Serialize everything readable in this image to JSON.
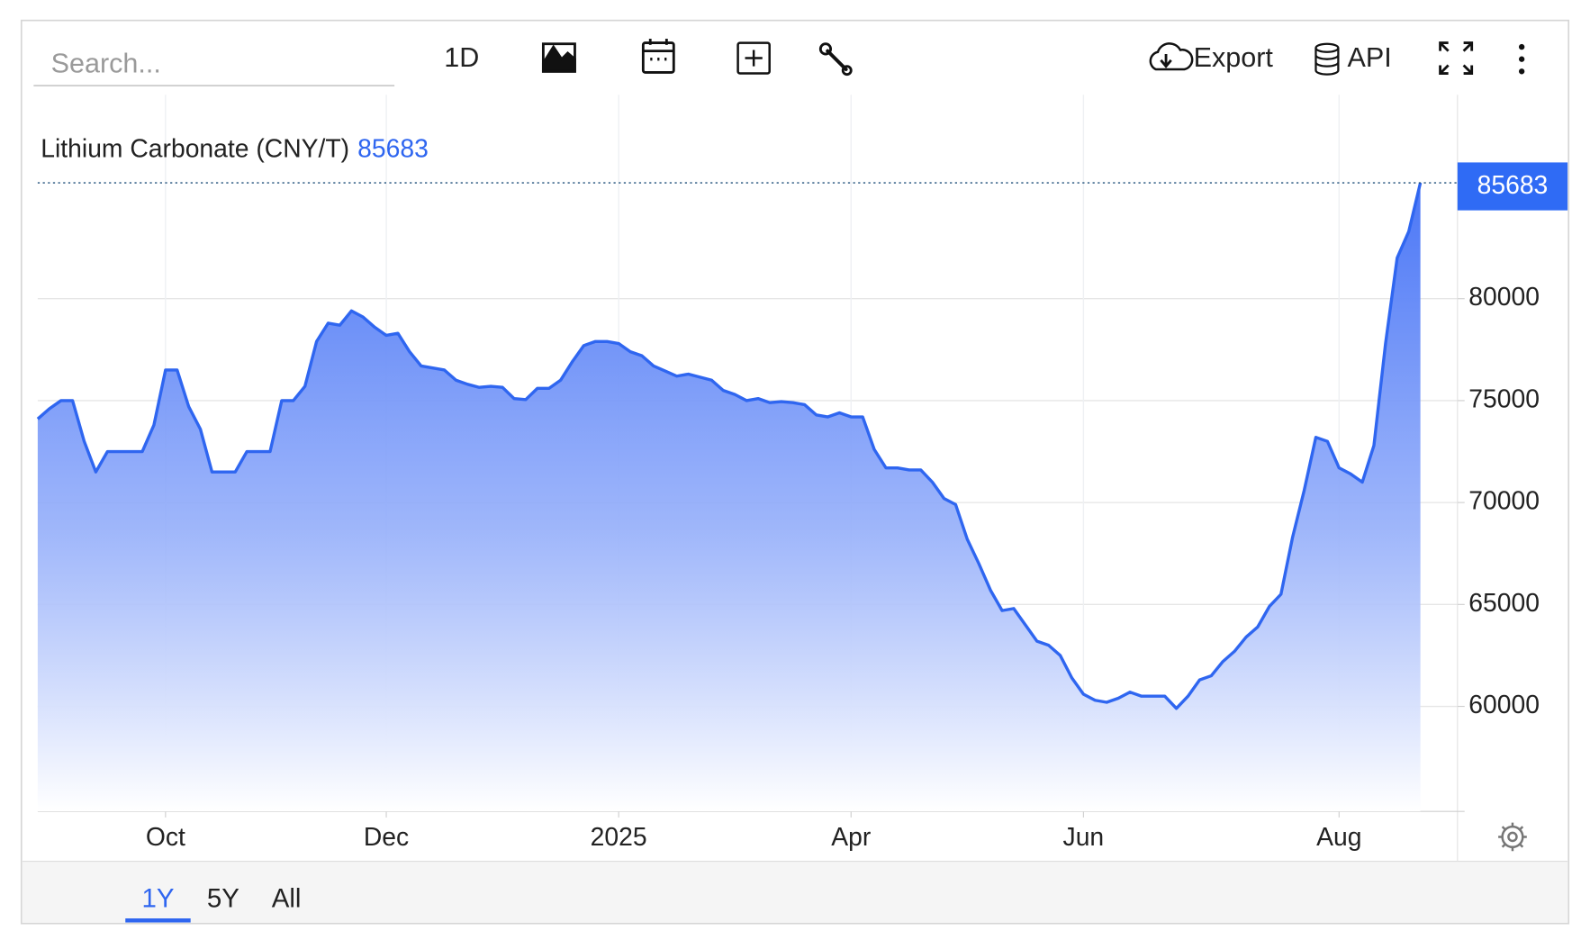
{
  "toolbar": {
    "search_placeholder": "Search...",
    "interval": "1D",
    "export": "Export",
    "api": "API"
  },
  "range_buttons": [
    "1Y",
    "5Y",
    "All"
  ],
  "chart_data": {
    "type": "area",
    "categories": [
      null,
      null,
      null,
      null,
      null,
      null,
      null,
      null,
      null,
      null,
      null,
      "Oct",
      null,
      null,
      null,
      null,
      null,
      null,
      null,
      null,
      null,
      null,
      null,
      null,
      null,
      null,
      null,
      null,
      null,
      null,
      "Dec",
      null,
      null,
      null,
      null,
      null,
      null,
      null,
      null,
      null,
      null,
      null,
      null,
      null,
      null,
      null,
      null,
      null,
      null,
      null,
      "2025",
      null,
      null,
      null,
      null,
      null,
      null,
      null,
      null,
      null,
      null,
      null,
      null,
      null,
      null,
      null,
      null,
      null,
      null,
      null,
      "Apr",
      null,
      null,
      null,
      null,
      null,
      null,
      null,
      null,
      null,
      null,
      null,
      null,
      null,
      null,
      null,
      null,
      null,
      null,
      null,
      "Jun",
      null,
      null,
      null,
      null,
      null,
      null,
      null,
      null,
      null,
      null,
      null,
      null,
      null,
      null,
      null,
      null,
      null,
      null,
      null,
      null,
      null,
      "Aug",
      null,
      null,
      null,
      null,
      null,
      null,
      null
    ],
    "series": [
      {
        "name": "Lithium Carbonate (CNY/T)",
        "color": "#2f66f0",
        "values": [
          74100,
          74600,
          75000,
          75000,
          73000,
          71500,
          72500,
          72500,
          72500,
          72500,
          73800,
          76500,
          76500,
          74700,
          73600,
          71500,
          71500,
          71500,
          72500,
          72500,
          72500,
          75000,
          75000,
          75700,
          77900,
          78800,
          78700,
          79400,
          79100,
          78600,
          78200,
          78300,
          77400,
          76700,
          76600,
          76500,
          76000,
          75800,
          75650,
          75700,
          75650,
          75100,
          75050,
          75600,
          75600,
          76000,
          76900,
          77700,
          77900,
          77900,
          77800,
          77400,
          77200,
          76700,
          76450,
          76200,
          76300,
          76150,
          76000,
          75500,
          75300,
          75000,
          75100,
          74900,
          74950,
          74900,
          74800,
          74300,
          74200,
          74400,
          74200,
          74200,
          72600,
          71700,
          71700,
          71600,
          71600,
          71000,
          70200,
          69900,
          68200,
          67000,
          65700,
          64700,
          64800,
          64000,
          63200,
          63000,
          62500,
          61400,
          60600,
          60300,
          60200,
          60400,
          60700,
          60500,
          60500,
          60500,
          59900,
          60500,
          61300,
          61500,
          62200,
          62700,
          63400,
          63900,
          64900,
          65500,
          68300,
          70600,
          73200,
          73000,
          71700,
          71400,
          71000,
          72800,
          77800,
          82000,
          83300,
          85683
        ]
      }
    ],
    "ylim": [
      54850,
      90000
    ],
    "yticks": [
      60000,
      65000,
      70000,
      75000,
      80000
    ],
    "grid": true
  }
}
